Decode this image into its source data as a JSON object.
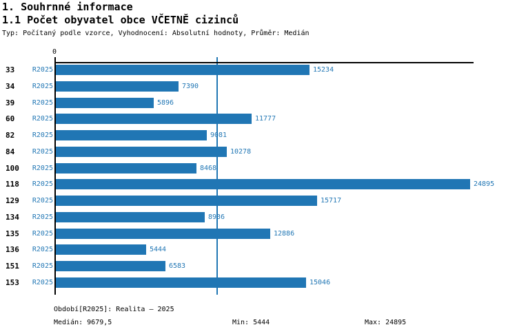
{
  "header": {
    "section_title": "1. Souhrnné informace",
    "subsection_title": "1.1 Počet obyvatel obce VČETNĚ cizinců",
    "type_line": "Typ: Počítaný podle vzorce, Vyhodnocení: Absolutní hodnoty, Průměr: Medián"
  },
  "chart_data": {
    "type": "bar",
    "orientation": "horizontal",
    "title": "1.1 Počet obyvatel obce VČETNĚ cizinců",
    "categories": [
      "33",
      "34",
      "39",
      "60",
      "82",
      "84",
      "100",
      "118",
      "129",
      "134",
      "135",
      "136",
      "151",
      "153"
    ],
    "series": [
      {
        "name": "R2025",
        "values": [
          15234,
          7390,
          5896,
          11777,
          9081,
          10278,
          8468,
          24895,
          15717,
          8936,
          12886,
          5444,
          6583,
          15046
        ]
      }
    ],
    "value_labels": [
      "15234",
      "7390",
      "5896",
      "11777",
      "9081",
      "10278",
      "8468",
      "24895",
      "15717",
      "8936",
      "12886",
      "5444",
      "6583",
      "15046"
    ],
    "xlim": [
      0,
      24895
    ],
    "x_axis_zero_label": "0",
    "median_line_value": 9679.5,
    "grid": false,
    "legend_position": "none",
    "bar_color": "#2076b4",
    "axis_color": "#000000",
    "median": 9679.5,
    "min": 5444,
    "max": 24895
  },
  "footer": {
    "period_line": "Období[R2025]: Realita – 2025",
    "median_label": "Medián: 9679,5",
    "min_label": "Min: 5444",
    "max_label": "Max: 24895"
  },
  "colors": {
    "accent_blue": "#2076b4",
    "axis_black": "#000000",
    "background": "#ffffff"
  }
}
